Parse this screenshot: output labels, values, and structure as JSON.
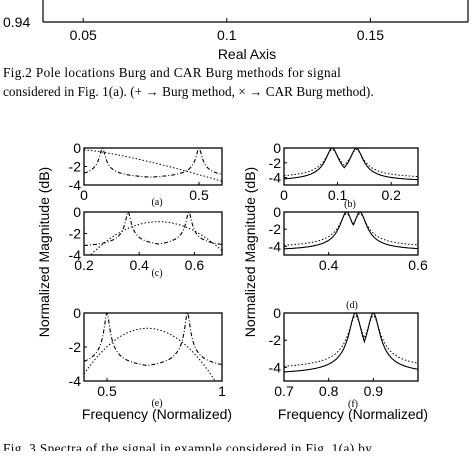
{
  "top_chart": {
    "x_ticks": [
      "0.05",
      "0.1",
      "0.15"
    ],
    "x_tick_values": [
      0.05,
      0.1,
      0.15
    ],
    "y_tick_label": "0.94",
    "xlabel": "Real Axis"
  },
  "caption_fig2": {
    "line1": "Fig.2 Pole locations Burg and CAR Burg methods for signal",
    "line2": "considered in Fig. 1(a). (+ → Burg method, × → CAR Burg method)."
  },
  "ylabel_left": "Normalized Magnitude (dB)",
  "ylabel_right": "Normalized Magnitude (dB)",
  "xlabel_left": "Frequency (Normalized)",
  "xlabel_right": "Frequency (Normalized)",
  "caption_fig3": {
    "line1": "Fig. 3 Spectra of the signal in example considered in Fig. 1(a) by..."
  },
  "chart_data": [
    {
      "type": "line",
      "panel_label": "(a)",
      "xlim": [
        0,
        0.6
      ],
      "ylim": [
        -4,
        0
      ],
      "x_ticks": [
        0,
        0.5
      ],
      "x_tick_labels": [
        "0",
        "0.5"
      ],
      "y_ticks": [
        0,
        -2,
        -4
      ],
      "y_tick_labels": [
        "0",
        "-2",
        "-4"
      ],
      "peaks": [
        0.08,
        0.5
      ]
    },
    {
      "type": "line",
      "panel_label": "(b)",
      "xlim": [
        0,
        0.25
      ],
      "ylim": [
        -5,
        0
      ],
      "x_ticks": [
        0,
        0.1,
        0.2
      ],
      "x_tick_labels": [
        "0",
        "0.1",
        "0.2"
      ],
      "y_ticks": [
        0,
        -2,
        -4
      ],
      "y_tick_labels": [
        "0",
        "-2",
        "-4"
      ],
      "peaks": [
        0.09,
        0.135
      ]
    },
    {
      "type": "line",
      "panel_label": "(c)",
      "xlim": [
        0.2,
        0.7
      ],
      "ylim": [
        -4,
        0
      ],
      "x_ticks": [
        0.2,
        0.4,
        0.6
      ],
      "x_tick_labels": [
        "0.2",
        "0.4",
        "0.6"
      ],
      "y_ticks": [
        0,
        -2,
        -4
      ],
      "y_tick_labels": [
        "0",
        "-2",
        "-4"
      ],
      "peaks": [
        0.36,
        0.58
      ]
    },
    {
      "type": "line",
      "panel_label": "(d)",
      "xlim": [
        0.3,
        0.6
      ],
      "ylim": [
        -5,
        0
      ],
      "x_ticks": [
        0.4,
        0.6
      ],
      "x_tick_labels": [
        "0.4",
        "0.6"
      ],
      "y_ticks": [
        0,
        -2,
        -4
      ],
      "y_tick_labels": [
        "0",
        "-2",
        "-4"
      ],
      "peaks": [
        0.44,
        0.47
      ]
    },
    {
      "type": "line",
      "panel_label": "(e)",
      "xlim": [
        0.4,
        1.0
      ],
      "ylim": [
        -4,
        0
      ],
      "x_ticks": [
        0.5,
        1
      ],
      "x_tick_labels": [
        "0.5",
        "1"
      ],
      "y_ticks": [
        0,
        -2,
        -4
      ],
      "y_tick_labels": [
        "0",
        "-2",
        "-4"
      ],
      "peaks": [
        0.5,
        0.85
      ]
    },
    {
      "type": "line",
      "panel_label": "(f)",
      "xlim": [
        0.7,
        1.0
      ],
      "ylim": [
        -5,
        0
      ],
      "x_ticks": [
        0.7,
        0.8,
        0.9
      ],
      "x_tick_labels": [
        "0.7",
        "0.8",
        "0.9"
      ],
      "y_ticks": [
        0,
        -2,
        -4
      ],
      "y_tick_labels": [
        "0",
        "-2",
        "-4"
      ],
      "peaks": [
        0.86,
        0.9
      ]
    }
  ]
}
